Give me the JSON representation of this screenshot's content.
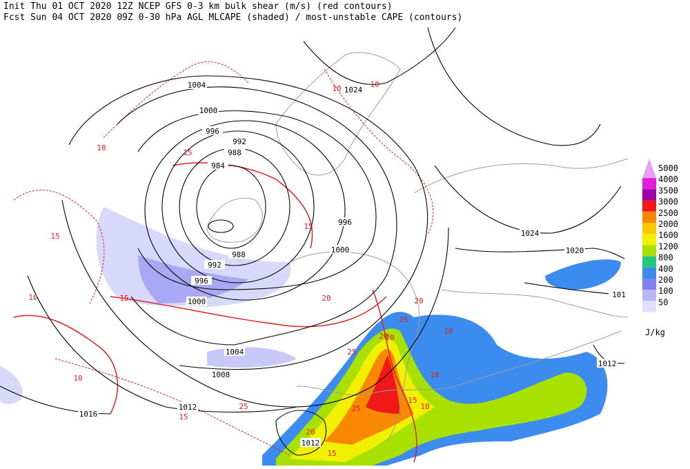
{
  "header": {
    "line1": "Init  Thu 01 OCT 2020 12Z  NCEP GFS 0-3 km bulk shear (m/s) (red contours)",
    "line2": "Fcst Sun 04 OCT 2020 09Z  0-30 hPa AGL MLCAPE (shaded) / most-unstable CAPE (contours)"
  },
  "isobar_labels": [
    "1004",
    "1000",
    "996",
    "992",
    "988",
    "984",
    "988",
    "992",
    "996",
    "1000",
    "1004",
    "1008",
    "1012",
    "1016",
    "1012",
    "1024",
    "1024",
    "1020",
    "101",
    "1012",
    "996",
    "1000"
  ],
  "shear_labels": [
    "10",
    "15",
    "10",
    "15",
    "10",
    "10",
    "15",
    "20",
    "25",
    "20",
    "20",
    "25",
    "15",
    "10",
    "20",
    "15",
    "10",
    "20",
    "25",
    "10",
    "15",
    "25",
    "10",
    "15"
  ],
  "legend": {
    "levels": [
      {
        "label": "5000",
        "color": "#e6a0f0"
      },
      {
        "label": "4000",
        "color": "#e020d8"
      },
      {
        "label": "3500",
        "color": "#a000a8"
      },
      {
        "label": "3000",
        "color": "#f01818"
      },
      {
        "label": "2500",
        "color": "#f88800"
      },
      {
        "label": "2000",
        "color": "#f8c800"
      },
      {
        "label": "1600",
        "color": "#f0f000"
      },
      {
        "label": "1200",
        "color": "#a8e000"
      },
      {
        "label": "800",
        "color": "#20c880"
      },
      {
        "label": "400",
        "color": "#3c8cf0"
      },
      {
        "label": "200",
        "color": "#8080f0"
      },
      {
        "label": "100",
        "color": "#b8b8f8"
      },
      {
        "label": "50",
        "color": "#e0e0fc"
      }
    ],
    "unit": "J/kg"
  }
}
